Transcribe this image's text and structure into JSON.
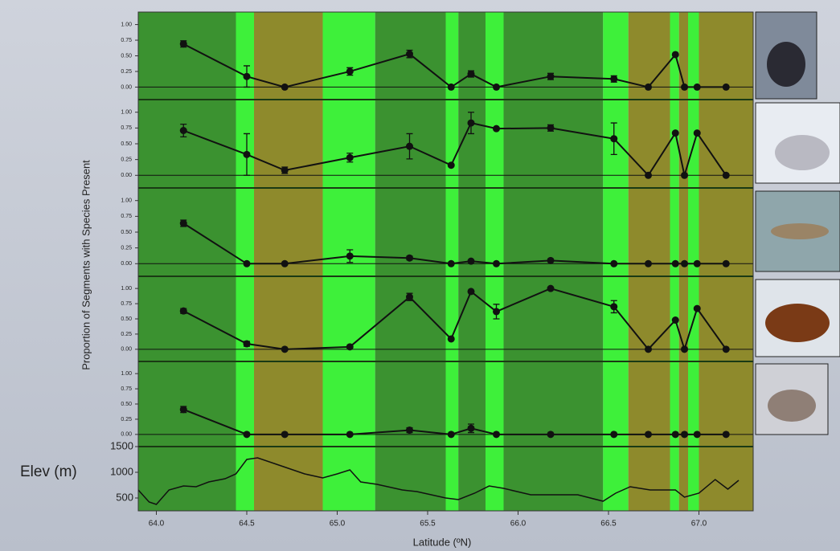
{
  "chart_data": [
    {
      "type": "line",
      "ylabel": "Proportion of Segments with Species Present",
      "x": [
        64.15,
        64.5,
        64.71,
        65.07,
        65.4,
        65.63,
        65.74,
        65.88,
        66.18,
        66.53,
        66.72,
        66.87,
        66.92,
        66.99,
        67.15
      ],
      "values": [
        0.69,
        0.17,
        0,
        0.25,
        0.53,
        0,
        0.21,
        0,
        0.17,
        0.13,
        0,
        0.52,
        0,
        0,
        0
      ],
      "errors": [
        0.05,
        0.17,
        null,
        0.06,
        0.06,
        null,
        0.05,
        null,
        0.05,
        0.05,
        null,
        null,
        null,
        null,
        null
      ],
      "ylim": [
        -0.2,
        1.2
      ],
      "yticks": [
        {
          "value": 0,
          "label": "0.00"
        },
        {
          "value": 0.25,
          "label": "0.25"
        },
        {
          "value": 0.5,
          "label": "0.50"
        },
        {
          "value": 0.75,
          "label": "0.75"
        },
        {
          "value": 1,
          "label": "1.00"
        }
      ]
    },
    {
      "type": "line",
      "x": [
        64.15,
        64.5,
        64.71,
        65.07,
        65.4,
        65.63,
        65.74,
        65.88,
        66.18,
        66.53,
        66.72,
        66.87,
        66.92,
        66.99,
        67.15
      ],
      "values": [
        0.71,
        0.33,
        0.08,
        0.28,
        0.46,
        0.16,
        0.83,
        0.74,
        0.75,
        0.58,
        0,
        0.67,
        0,
        0.67,
        0
      ],
      "errors": [
        0.1,
        0.33,
        0.05,
        0.07,
        0.2,
        null,
        0.17,
        null,
        0.05,
        0.25,
        null,
        null,
        null,
        null,
        null
      ],
      "ylim": [
        -0.2,
        1.2
      ],
      "yticks": [
        {
          "value": 0,
          "label": "0.00"
        },
        {
          "value": 0.25,
          "label": "0.25"
        },
        {
          "value": 0.5,
          "label": "0.50"
        },
        {
          "value": 0.75,
          "label": "0.75"
        },
        {
          "value": 1,
          "label": "1.00"
        }
      ]
    },
    {
      "type": "line",
      "x": [
        64.15,
        64.5,
        64.71,
        65.07,
        65.4,
        65.63,
        65.74,
        65.88,
        66.18,
        66.53,
        66.72,
        66.87,
        66.92,
        66.99,
        67.15
      ],
      "values": [
        0.64,
        0,
        0,
        0.12,
        0.09,
        0,
        0.04,
        0,
        0.05,
        0,
        0,
        0,
        0,
        0,
        0
      ],
      "errors": [
        0.05,
        null,
        null,
        0.1,
        0.03,
        null,
        null,
        null,
        null,
        null,
        null,
        null,
        null,
        null,
        null
      ],
      "ylim": [
        -0.2,
        1.2
      ],
      "yticks": [
        {
          "value": 0,
          "label": "0.00"
        },
        {
          "value": 0.25,
          "label": "0.25"
        },
        {
          "value": 0.5,
          "label": "0.50"
        },
        {
          "value": 0.75,
          "label": "0.75"
        },
        {
          "value": 1,
          "label": "1.00"
        }
      ]
    },
    {
      "type": "line",
      "x": [
        64.15,
        64.5,
        64.71,
        65.07,
        65.4,
        65.63,
        65.74,
        65.88,
        66.18,
        66.53,
        66.72,
        66.87,
        66.92,
        66.99,
        67.15
      ],
      "values": [
        0.63,
        0.09,
        0,
        0.04,
        0.86,
        0.17,
        0.95,
        0.62,
        1,
        0.7,
        0,
        0.48,
        0,
        0.67,
        0
      ],
      "errors": [
        0.04,
        0.04,
        null,
        null,
        0.06,
        null,
        null,
        0.12,
        null,
        0.1,
        null,
        null,
        null,
        null,
        null
      ],
      "ylim": [
        -0.2,
        1.2
      ],
      "yticks": [
        {
          "value": 0,
          "label": "0.00"
        },
        {
          "value": 0.25,
          "label": "0.25"
        },
        {
          "value": 0.5,
          "label": "0.50"
        },
        {
          "value": 0.75,
          "label": "0.75"
        },
        {
          "value": 1,
          "label": "1.00"
        }
      ]
    },
    {
      "type": "line",
      "x": [
        64.15,
        64.5,
        64.71,
        65.07,
        65.4,
        65.63,
        65.74,
        65.88,
        66.18,
        66.53,
        66.72,
        66.87,
        66.92,
        66.99,
        67.15
      ],
      "values": [
        0.41,
        0,
        0,
        0,
        0.07,
        0,
        0.1,
        0,
        0,
        0,
        0,
        0,
        0,
        0,
        0
      ],
      "errors": [
        0.05,
        null,
        null,
        null,
        0.04,
        null,
        0.07,
        null,
        null,
        null,
        null,
        null,
        null,
        null,
        null
      ],
      "ylim": [
        -0.2,
        1.2
      ],
      "yticks": [
        {
          "value": 0,
          "label": "0.00"
        },
        {
          "value": 0.25,
          "label": "0.25"
        },
        {
          "value": 0.5,
          "label": "0.50"
        },
        {
          "value": 0.75,
          "label": "0.75"
        },
        {
          "value": 1,
          "label": "1.00"
        }
      ]
    },
    {
      "type": "elevation",
      "ylabel": "Elev (m)",
      "xlabel": "Latitude (ºN)",
      "x": [
        63.9,
        63.96,
        64.0,
        64.07,
        64.15,
        64.22,
        64.29,
        64.38,
        64.44,
        64.5,
        64.56,
        64.69,
        64.82,
        64.92,
        65.0,
        65.07,
        65.13,
        65.22,
        65.36,
        65.44,
        65.6,
        65.67,
        65.76,
        65.84,
        65.92,
        66.07,
        66.2,
        66.33,
        66.47,
        66.54,
        66.62,
        66.73,
        66.87,
        66.92,
        67.0,
        67.09,
        67.16,
        67.22
      ],
      "values": [
        656,
        422,
        375,
        656,
        734,
        719,
        812,
        875,
        969,
        1250,
        1281,
        1125,
        969,
        891,
        969,
        1047,
        812,
        766,
        656,
        625,
        500,
        469,
        594,
        734,
        687,
        562,
        562,
        562,
        437,
        594,
        719,
        656,
        656,
        516,
        594,
        859,
        672,
        844
      ],
      "color": "#111111",
      "ylim": [
        250,
        1500
      ],
      "yticks": [
        500,
        1000,
        1500
      ],
      "xlim": [
        63.9,
        67.3
      ],
      "xticks": [
        {
          "value": 64,
          "label": "64.0"
        },
        64.5,
        {
          "value": 65,
          "label": "65.0"
        },
        65.5,
        {
          "value": 66,
          "label": "66.0"
        },
        66.5,
        {
          "value": 67,
          "label": "67.0"
        }
      ],
      "regions": [
        {
          "start": 63.9,
          "end": 64.44,
          "color": "#3b9230"
        },
        {
          "start": 64.44,
          "end": 64.54,
          "color": "#3ef03a"
        },
        {
          "start": 64.54,
          "end": 64.92,
          "color": "#8e8a2c"
        },
        {
          "start": 64.92,
          "end": 65.21,
          "color": "#3ef03a"
        },
        {
          "start": 65.21,
          "end": 65.6,
          "color": "#3b9230"
        },
        {
          "start": 65.6,
          "end": 65.67,
          "color": "#3ef03a"
        },
        {
          "start": 65.67,
          "end": 65.82,
          "color": "#3b9230"
        },
        {
          "start": 65.82,
          "end": 65.92,
          "color": "#3ef03a"
        },
        {
          "start": 65.92,
          "end": 66.47,
          "color": "#3b9230"
        },
        {
          "start": 66.47,
          "end": 66.61,
          "color": "#3ef03a"
        },
        {
          "start": 66.61,
          "end": 66.84,
          "color": "#8e8a2c"
        },
        {
          "start": 66.84,
          "end": 66.89,
          "color": "#3ef03a"
        },
        {
          "start": 66.89,
          "end": 66.94,
          "color": "#8e8a2c"
        },
        {
          "start": 66.94,
          "end": 67.0,
          "color": "#3ef03a"
        },
        {
          "start": 67.0,
          "end": 67.3,
          "color": "#8e8a2c"
        }
      ]
    }
  ]
}
